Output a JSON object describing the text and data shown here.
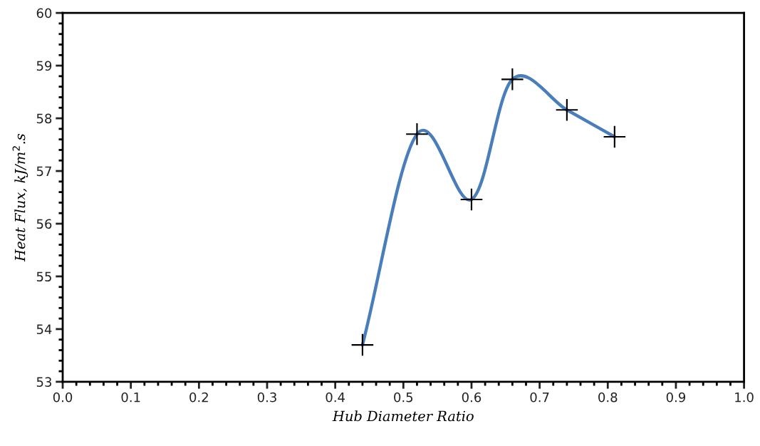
{
  "chart_data": {
    "type": "line",
    "xlabel": "Hub Diameter Ratio",
    "ylabel": "Heat Flux, kJ/m$^{2}$.s",
    "x": [
      0.44,
      0.52,
      0.6,
      0.66,
      0.74,
      0.81
    ],
    "series": [
      {
        "color": "#4a7ebb",
        "values": [
          53.7,
          57.7,
          56.46,
          58.74,
          58.16,
          57.65
        ],
        "line_style": "solid",
        "marker": "none"
      },
      {
        "type": "scatter",
        "color": "#000000",
        "values": [
          53.7,
          57.7,
          56.46,
          58.74,
          58.16,
          57.65
        ],
        "marker": "cross"
      }
    ],
    "xlim": [
      0.0,
      1.0
    ],
    "xticks": [
      {
        "value": 0.0,
        "label": "0.0"
      },
      {
        "value": 0.1,
        "label": "0.1"
      },
      {
        "value": 0.2,
        "label": "0.2"
      },
      {
        "value": 0.3,
        "label": "0.3"
      },
      {
        "value": 0.4,
        "label": "0.4"
      },
      {
        "value": 0.5,
        "label": "0.5"
      },
      {
        "value": 0.6,
        "label": "0.6"
      },
      {
        "value": 0.7,
        "label": "0.7"
      },
      {
        "value": 0.8,
        "label": "0.8"
      },
      {
        "value": 0.9,
        "label": "0.9"
      },
      {
        "value": 1.0,
        "label": "1.0"
      }
    ],
    "ylim": [
      53,
      60
    ],
    "yticks": [
      53,
      54,
      55,
      56,
      57,
      58,
      59,
      60
    ],
    "grid": false,
    "legend": false
  }
}
